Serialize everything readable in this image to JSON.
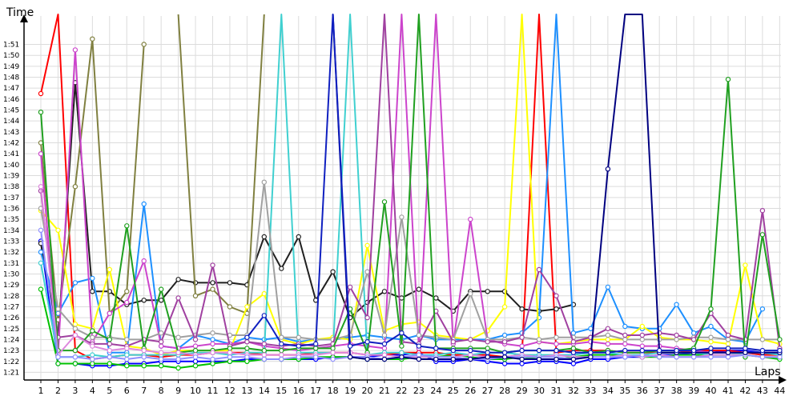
{
  "chart_data": {
    "type": "line",
    "xlabel": "Laps",
    "ylabel": "Time",
    "x": [
      1,
      2,
      3,
      4,
      5,
      6,
      7,
      8,
      9,
      10,
      11,
      12,
      13,
      14,
      15,
      16,
      17,
      18,
      19,
      20,
      21,
      22,
      23,
      24,
      25,
      26,
      27,
      28,
      29,
      30,
      31,
      32,
      33,
      34,
      35,
      36,
      37,
      38,
      39,
      40,
      41,
      42,
      43,
      44
    ],
    "yticks": [
      "1:21",
      "1:22",
      "1:23",
      "1:24",
      "1:25",
      "1:26",
      "1:27",
      "1:28",
      "1:29",
      "1:30",
      "1:31",
      "1:32",
      "1:33",
      "1:34",
      "1:35",
      "1:36",
      "1:37",
      "1:38",
      "1:39",
      "1:40",
      "1:41",
      "1:42",
      "1:43",
      "1:44",
      "1:45",
      "1:46",
      "1:47",
      "1:48",
      "1:49",
      "1:50",
      "1:51"
    ],
    "ylim_seconds": [
      80.3,
      113.6
    ],
    "grid": true,
    "series": [
      {
        "color": "#0000ff",
        "values": [
          93,
          81.8,
          81.8,
          81.6,
          81.6,
          81.8,
          81.8,
          82,
          82,
          82,
          82,
          82,
          82.2,
          82.2,
          82.2,
          82.2,
          82.2,
          82.4,
          82.4,
          82.4,
          82.6,
          82.6,
          82.8,
          82,
          82,
          82.2,
          82,
          81.8,
          81.8,
          82,
          82,
          81.8,
          82.2,
          82.2,
          82.4,
          82.4,
          82.6,
          82.6,
          82.8,
          82.8,
          83,
          83,
          82.8,
          82.6
        ]
      },
      {
        "color": "#00c000",
        "values": [
          88.6,
          81.8,
          81.8,
          81.8,
          81.8,
          81.6,
          81.6,
          81.6,
          81.4,
          81.6,
          81.8,
          82,
          82,
          82.2,
          82.2,
          82.2,
          82.4,
          82.4,
          82.4,
          82.2,
          82.2,
          82.2,
          82.4,
          82.4,
          82.6,
          82.4,
          82.2,
          82.2,
          82.4,
          82.2,
          82.2,
          82.4,
          82.6,
          82.6,
          82.6,
          82.4,
          82.4,
          82.6,
          82.6,
          82.6,
          82.6,
          82.6,
          82.4,
          82.2
        ]
      },
      {
        "color": "#ff0000",
        "values": [
          106.5,
          123,
          83,
          82.2,
          82.4,
          82.6,
          82.6,
          82.4,
          82.6,
          82.6,
          82.8,
          82.8,
          82.8,
          82.6,
          82.6,
          82.6,
          82.8,
          82.8,
          82.8,
          82.6,
          82.6,
          82.8,
          82.8,
          82.8,
          82.6,
          82.6,
          82.6,
          82.4,
          82.6,
          123,
          82.8,
          83,
          83,
          83,
          82.8,
          82.8,
          82.8,
          82.8,
          83,
          83,
          83,
          82.8,
          82.6,
          82.6
        ]
      },
      {
        "color": "#202020",
        "values": [
          92.8,
          84.2,
          107.5,
          88.4,
          88.4,
          87.2,
          87.6,
          87.6,
          89.5,
          89.2,
          89.2,
          89.2,
          89,
          93.4,
          90.5,
          93.4,
          87.6,
          90.2,
          86,
          87.4,
          88.4,
          87.8,
          88.6,
          87.8,
          86.6,
          88.4,
          88.4,
          88.4,
          86.8,
          86.6,
          86.8,
          87.2,
          null,
          null,
          null,
          null,
          null,
          null,
          null,
          null,
          null,
          null,
          null,
          null
        ]
      },
      {
        "color": "#808040",
        "values": [
          102,
          85.8,
          98,
          111.5,
          86.4,
          88.4,
          111,
          null,
          null,
          null,
          null,
          null,
          null,
          null,
          null,
          null,
          null,
          null,
          null,
          null,
          null,
          null,
          null,
          null,
          null,
          null,
          null,
          null,
          null,
          null,
          null,
          null,
          null,
          null,
          null,
          null,
          null,
          null,
          null,
          null,
          null,
          null,
          null,
          null
        ]
      },
      {
        "color": "#808040",
        "values": [
          null,
          null,
          null,
          null,
          null,
          null,
          null,
          null,
          123,
          88,
          88.6,
          87,
          86.4,
          123,
          null,
          null,
          null,
          null,
          null,
          null,
          null,
          null,
          null,
          null,
          null,
          null,
          null,
          null,
          null,
          null,
          null,
          null,
          null,
          null,
          null,
          null,
          null,
          null,
          null,
          null,
          null,
          null,
          null,
          null
        ]
      },
      {
        "color": "#1e90ff",
        "values": [
          92,
          86.4,
          89.2,
          89.6,
          82.8,
          82.8,
          96.4,
          83.4,
          83.2,
          84.4,
          84,
          83.6,
          84.2,
          84,
          84.2,
          83.8,
          84,
          84,
          84.2,
          84.4,
          84.2,
          84,
          84.4,
          84,
          84,
          84,
          84,
          84.4,
          84.6,
          86,
          123,
          84.6,
          85,
          88.8,
          85.2,
          85,
          85,
          87.2,
          84.6,
          85.2,
          84,
          83.8,
          86.8,
          null
        ]
      },
      {
        "color": "#ffff00",
        "values": [
          95.8,
          94,
          85.4,
          85,
          90.4,
          83.4,
          83.2,
          82.6,
          83,
          83,
          83,
          83,
          87,
          88.2,
          84,
          83.6,
          84,
          84.2,
          84,
          92.6,
          84.8,
          85.4,
          85.6,
          84.4,
          84.2,
          84,
          84.8,
          87,
          123,
          83.8,
          83.6,
          83.8,
          84,
          84,
          84,
          85.2,
          84.2,
          84,
          84,
          83.8,
          83.6,
          90.8,
          84,
          83.6
        ]
      },
      {
        "color": "#cc44cc",
        "values": [
          101,
          82.6,
          110.5,
          83.8,
          86.4,
          87.4,
          91.2,
          83.4,
          83.2,
          83.4,
          83.6,
          83.6,
          83.8,
          83.4,
          83.2,
          83,
          83.2,
          83.4,
          83.6,
          83.4,
          83.2,
          123,
          83.2,
          123,
          83.6,
          95,
          84,
          83.6,
          83.4,
          83.8,
          83.6,
          83.6,
          83.8,
          83.6,
          83.6,
          83.4,
          83.4,
          83.2,
          83,
          82.8,
          82.8,
          82.8,
          82.8,
          82.8
        ]
      },
      {
        "color": "#40d0d0",
        "values": [
          91,
          82.4,
          82.4,
          82.6,
          82.4,
          82.6,
          82.6,
          82.6,
          82.6,
          82.8,
          82.8,
          82.6,
          82.8,
          82.8,
          123,
          82.8,
          82.8,
          82.8,
          123,
          82.6,
          82.8,
          82.8,
          82.6,
          82.6,
          82.8,
          82.6,
          82.8,
          82.8,
          82.6,
          82.6,
          82.6,
          82.6,
          82.8,
          82.8,
          82.6,
          82.6,
          82.8,
          82.8,
          82.8,
          82.6,
          82.6,
          82.8,
          82.8,
          82.6
        ]
      },
      {
        "color": "#a0a0a0",
        "values": [
          96,
          86.8,
          85,
          84.2,
          84.2,
          84,
          84,
          84.6,
          84.2,
          84.4,
          84.6,
          84.4,
          84.4,
          98.4,
          84.2,
          84.2,
          84,
          84,
          84.4,
          90.2,
          84.4,
          95.2,
          84.4,
          84.2,
          84,
          88.2,
          84,
          84,
          84.2,
          84,
          84.2,
          84.2,
          84.2,
          84.4,
          84,
          84,
          84,
          84,
          84.2,
          84.2,
          84,
          84,
          84,
          84
        ]
      },
      {
        "color": "#a040a0",
        "values": [
          97.6,
          84.2,
          84.4,
          83.6,
          83.6,
          83.4,
          84,
          83.8,
          87.8,
          84,
          90.8,
          83.4,
          83.8,
          83.6,
          83.4,
          83.6,
          83.4,
          83.6,
          88.8,
          86,
          123,
          83.8,
          83.6,
          86.6,
          83.8,
          84,
          83.8,
          83.8,
          84.2,
          90.4,
          88,
          83.8,
          84.2,
          85,
          84.4,
          84.4,
          84.6,
          84.4,
          84,
          86.4,
          84.4,
          84,
          95.8,
          83.2
        ]
      },
      {
        "color": "#20a020",
        "values": [
          104.8,
          83,
          83,
          84.8,
          84,
          94.4,
          83.2,
          88.6,
          82.8,
          83,
          83,
          83.2,
          83.2,
          83,
          83,
          83.2,
          83.2,
          83.2,
          86.8,
          82.8,
          96.6,
          83.4,
          123,
          83.2,
          83.2,
          83.2,
          83.2,
          82.8,
          83,
          83,
          83,
          83.2,
          82.8,
          83,
          82.8,
          82.8,
          83,
          83,
          83.2,
          86.8,
          107.8,
          82.4,
          93.6,
          84
        ]
      },
      {
        "color": "#dd88dd",
        "values": [
          98,
          82.6,
          84.4,
          83.4,
          83,
          83.2,
          83,
          82.8,
          82.8,
          82.6,
          82.8,
          82.8,
          82.6,
          82.6,
          82.6,
          82.6,
          82.6,
          82.8,
          82.8,
          82.6,
          82.6,
          82.4,
          82.4,
          82.4,
          82.4,
          82.6,
          82.4,
          82.4,
          82.6,
          82.4,
          82.6,
          82.4,
          82.4,
          82.4,
          82.6,
          82.4,
          82.6,
          82.4,
          82.4,
          82.6,
          82.6,
          82.6,
          82.4,
          82.4
        ]
      },
      {
        "color": "#9090ff",
        "values": [
          94,
          82.4,
          82.4,
          82.2,
          82.4,
          82.2,
          82.4,
          82.2,
          82.2,
          82.4,
          82.2,
          82.4,
          82.4,
          82.2,
          82.2,
          82.4,
          82.4,
          82.2,
          82.4,
          82.4,
          82.2,
          82.4,
          82.6,
          82.4,
          82.4,
          82.2,
          82.2,
          82.4,
          82.4,
          82.4,
          82.4,
          82.2,
          82.4,
          82.4,
          82.4,
          82.6,
          82.4,
          82.4,
          82.4,
          82.4,
          82.4,
          82.6,
          82.4,
          82.4
        ]
      },
      {
        "color": "#000080",
        "values": [
          null,
          null,
          null,
          null,
          null,
          null,
          null,
          null,
          null,
          null,
          null,
          null,
          null,
          null,
          null,
          null,
          null,
          123,
          82.4,
          82.2,
          82.2,
          82.4,
          82.2,
          82.2,
          82.2,
          82.2,
          82.4,
          82.4,
          82.2,
          82.2,
          82.2,
          82.2,
          82.4,
          99.6,
          123,
          123,
          82.8,
          82.8,
          82.8,
          82.8,
          82.8,
          82.8,
          82.8,
          82.8
        ]
      },
      {
        "color": "#1020c0",
        "values": [
          null,
          null,
          null,
          null,
          null,
          null,
          null,
          null,
          null,
          null,
          null,
          null,
          84.2,
          86.2,
          83.6,
          83.4,
          83.6,
          123,
          83.4,
          83.8,
          83.6,
          84.6,
          83.4,
          83.2,
          83,
          83,
          82.8,
          82.8,
          83,
          83,
          83,
          82.8,
          82.8,
          82.8,
          83,
          83,
          83,
          83,
          83,
          83.2,
          83.2,
          83.2,
          83,
          83
        ]
      }
    ]
  }
}
